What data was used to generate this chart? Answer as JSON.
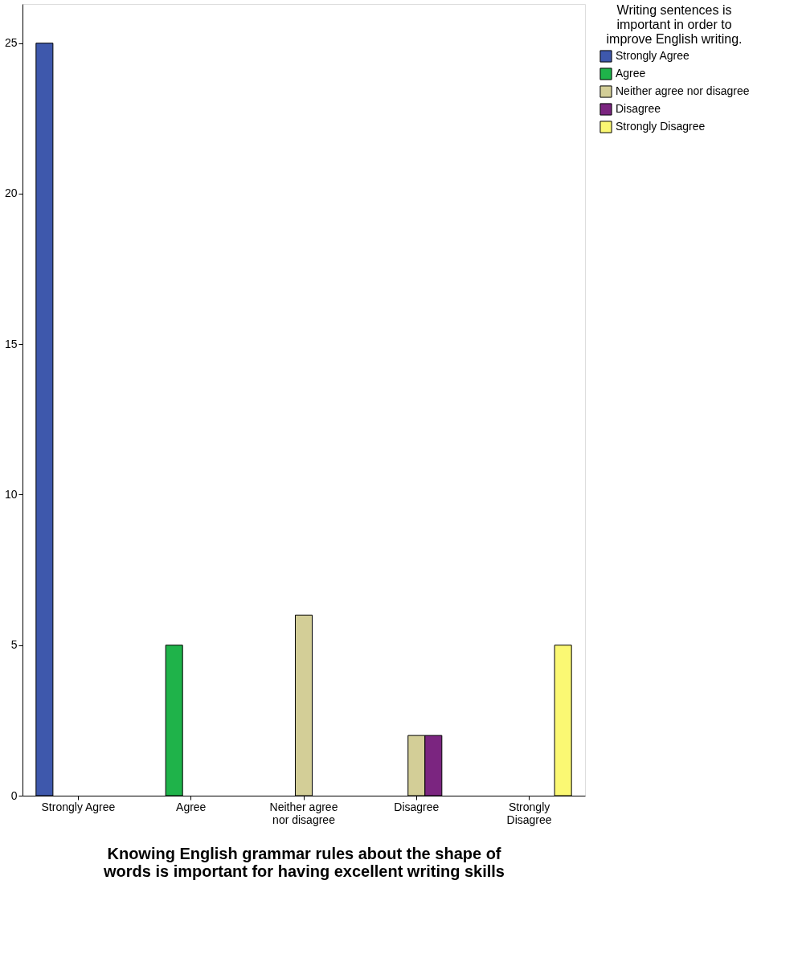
{
  "chart_data": {
    "type": "bar",
    "xlabel": "Knowing English grammar rules about the shape of\nwords is important for having excellent writing skills",
    "legend_title": "Writing sentences is\nimportant in order to\nimprove English writing.",
    "categories": [
      "Strongly Agree",
      "Agree",
      "Neither agree nor disagree",
      "Disagree",
      "Strongly Disagree"
    ],
    "series": [
      {
        "name": "Strongly Agree",
        "color": "#3e58ac",
        "values": [
          25,
          null,
          null,
          null,
          null
        ]
      },
      {
        "name": "Agree",
        "color": "#1fb34a",
        "values": [
          null,
          5,
          null,
          null,
          null
        ]
      },
      {
        "name": "Neither agree nor disagree",
        "color": "#d3ce97",
        "values": [
          null,
          null,
          6,
          2,
          null
        ]
      },
      {
        "name": "Disagree",
        "color": "#7b2580",
        "values": [
          null,
          null,
          null,
          2,
          null
        ]
      },
      {
        "name": "Strongly Disagree",
        "color": "#fbf873",
        "values": [
          null,
          null,
          null,
          null,
          5
        ]
      }
    ],
    "ylim": [
      0,
      26.3
    ],
    "yticks": [
      0,
      5,
      10,
      15,
      20,
      25
    ],
    "grid": false,
    "legend": "top right"
  }
}
